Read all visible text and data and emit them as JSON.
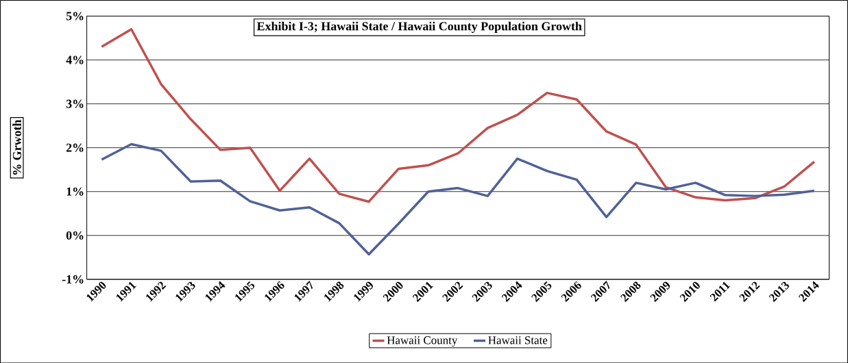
{
  "chart_data": {
    "type": "line",
    "title": "Exhibit I-3; Hawaii State / Hawaii County Population Growth",
    "ylabel": "% Grwoth",
    "categories": [
      "1990",
      "1991",
      "1992",
      "1993",
      "1994",
      "1995",
      "1996",
      "1997",
      "1998",
      "1999",
      "2000",
      "2001",
      "2002",
      "2003",
      "2004",
      "2005",
      "2006",
      "2007",
      "2008",
      "2009",
      "2010",
      "2011",
      "2012",
      "2013",
      "2014"
    ],
    "series": [
      {
        "name": "Hawaii County",
        "color": "#c0504d",
        "values": [
          4.3,
          4.7,
          3.45,
          2.65,
          1.95,
          2.0,
          1.02,
          1.75,
          0.95,
          0.77,
          1.52,
          1.6,
          1.87,
          2.45,
          2.75,
          3.25,
          3.1,
          2.37,
          2.07,
          1.1,
          0.87,
          0.8,
          0.85,
          1.12,
          1.68
        ]
      },
      {
        "name": "Hawaii State",
        "color": "#4f6199",
        "values": [
          1.73,
          2.08,
          1.93,
          1.23,
          1.25,
          0.78,
          0.57,
          0.64,
          0.28,
          -0.43,
          0.27,
          1.0,
          1.08,
          0.9,
          1.75,
          1.47,
          1.27,
          0.42,
          1.2,
          1.05,
          1.2,
          0.92,
          0.9,
          0.93,
          1.02
        ]
      }
    ],
    "ylim": [
      -1,
      5
    ],
    "yticks": [
      {
        "value": -1,
        "label": "-1%"
      },
      {
        "value": 0,
        "label": "0%"
      },
      {
        "value": 1,
        "label": "1%"
      },
      {
        "value": 2,
        "label": "2%"
      },
      {
        "value": 3,
        "label": "3%"
      },
      {
        "value": 4,
        "label": "4%"
      },
      {
        "value": 5,
        "label": "5%"
      }
    ],
    "grid": "y",
    "legend": "bottom",
    "marker": "none",
    "line_style": "solid"
  }
}
